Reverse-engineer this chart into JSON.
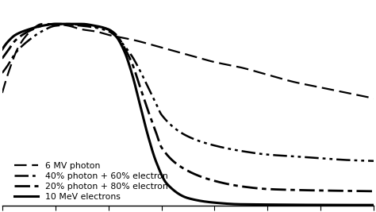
{
  "title": "",
  "background_color": "#ffffff",
  "curves": {
    "photon_6mv": {
      "label": "6 MV photon",
      "color": "#000000",
      "linewidth": 1.6
    },
    "mix_40_60": {
      "label": "40% photon + 60% electron",
      "color": "#000000",
      "linewidth": 1.8
    },
    "mix_20_80": {
      "label": "20% photon + 80% electron",
      "color": "#000000",
      "linewidth": 2.0
    },
    "electron_10mev": {
      "label": "10 MeV electrons",
      "color": "#000000",
      "linewidth": 2.2
    }
  },
  "xlim": [
    0,
    14
  ],
  "ylim": [
    0.0,
    1.12
  ],
  "legend_fontsize": 7.8,
  "photon_x": [
    0.0,
    0.3,
    0.6,
    1.0,
    1.5,
    2.0,
    2.5,
    3.0,
    3.5,
    4.0,
    5.0,
    6.0,
    7.0,
    8.0,
    9.0,
    10.0,
    11.0,
    12.0,
    13.0,
    14.0
  ],
  "photon_y": [
    0.62,
    0.76,
    0.87,
    0.95,
    1.0,
    1.0,
    0.99,
    0.97,
    0.96,
    0.94,
    0.91,
    0.87,
    0.83,
    0.79,
    0.76,
    0.72,
    0.68,
    0.65,
    0.62,
    0.59
  ],
  "electron_x": [
    0.0,
    0.2,
    0.5,
    1.0,
    1.5,
    2.0,
    2.5,
    3.0,
    3.5,
    4.0,
    4.3,
    4.6,
    4.9,
    5.2,
    5.5,
    5.8,
    6.2,
    7.0,
    8.0,
    9.0,
    14.0
  ],
  "electron_y": [
    0.86,
    0.9,
    0.94,
    0.97,
    0.99,
    1.0,
    1.0,
    1.0,
    0.99,
    0.97,
    0.93,
    0.85,
    0.72,
    0.55,
    0.38,
    0.24,
    0.12,
    0.04,
    0.015,
    0.006,
    0.002
  ],
  "mix4060_x": [
    0.0,
    0.2,
    0.5,
    1.0,
    1.5,
    2.0,
    2.5,
    3.0,
    3.5,
    4.0,
    4.3,
    4.6,
    4.9,
    5.2,
    5.5,
    5.8,
    6.0,
    7.0,
    8.0,
    9.0,
    10.0,
    11.0,
    12.0,
    13.0,
    14.0
  ],
  "mix4060_y": [
    0.73,
    0.77,
    0.84,
    0.91,
    0.96,
    0.99,
    0.995,
    0.99,
    0.98,
    0.96,
    0.93,
    0.88,
    0.82,
    0.74,
    0.65,
    0.56,
    0.5,
    0.38,
    0.33,
    0.3,
    0.28,
    0.27,
    0.26,
    0.25,
    0.245
  ],
  "mix2080_x": [
    0.0,
    0.2,
    0.5,
    1.0,
    1.5,
    2.0,
    2.5,
    3.0,
    3.5,
    4.0,
    4.3,
    4.6,
    4.9,
    5.2,
    5.5,
    5.8,
    6.0,
    7.0,
    8.0,
    9.0,
    10.0,
    11.0,
    12.0,
    13.0,
    14.0
  ],
  "mix2080_y": [
    0.81,
    0.85,
    0.91,
    0.96,
    0.99,
    1.0,
    1.0,
    0.995,
    0.985,
    0.97,
    0.94,
    0.87,
    0.78,
    0.65,
    0.52,
    0.4,
    0.32,
    0.19,
    0.135,
    0.105,
    0.09,
    0.085,
    0.082,
    0.08,
    0.078
  ]
}
